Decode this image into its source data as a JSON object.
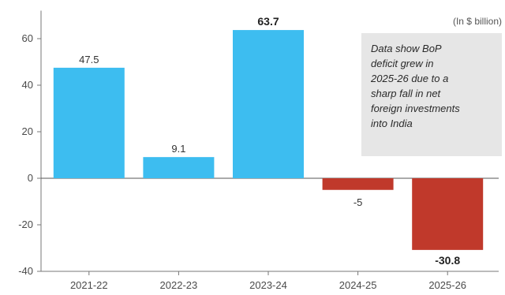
{
  "chart_data": {
    "type": "bar",
    "categories": [
      "2021-22",
      "2022-23",
      "2023-24",
      "2024-25",
      "2025-26"
    ],
    "values": [
      47.5,
      9.1,
      63.7,
      -5,
      -30.8
    ],
    "data_labels": [
      "47.5",
      "9.1",
      "63.7",
      "-5",
      "-30.8"
    ],
    "bold_labels": [
      false,
      false,
      true,
      false,
      true
    ],
    "colors": [
      "#3dbdf0",
      "#3dbdf0",
      "#3dbdf0",
      "#c0392b",
      "#c0392b"
    ],
    "unit_note": "(In $ billion)",
    "annotation_lines": [
      "Data show  BoP",
      "deficit grew in",
      "2025-26 due to a",
      "sharp fall in net",
      "foreign investments",
      "into India"
    ],
    "ylim": [
      -40,
      70
    ],
    "yticks": [
      60,
      40,
      20,
      0,
      -20,
      -40
    ],
    "ytick_labels": [
      "60",
      "40",
      "20",
      "0",
      "-20",
      "-40"
    ],
    "grid": false,
    "legend": "none"
  }
}
